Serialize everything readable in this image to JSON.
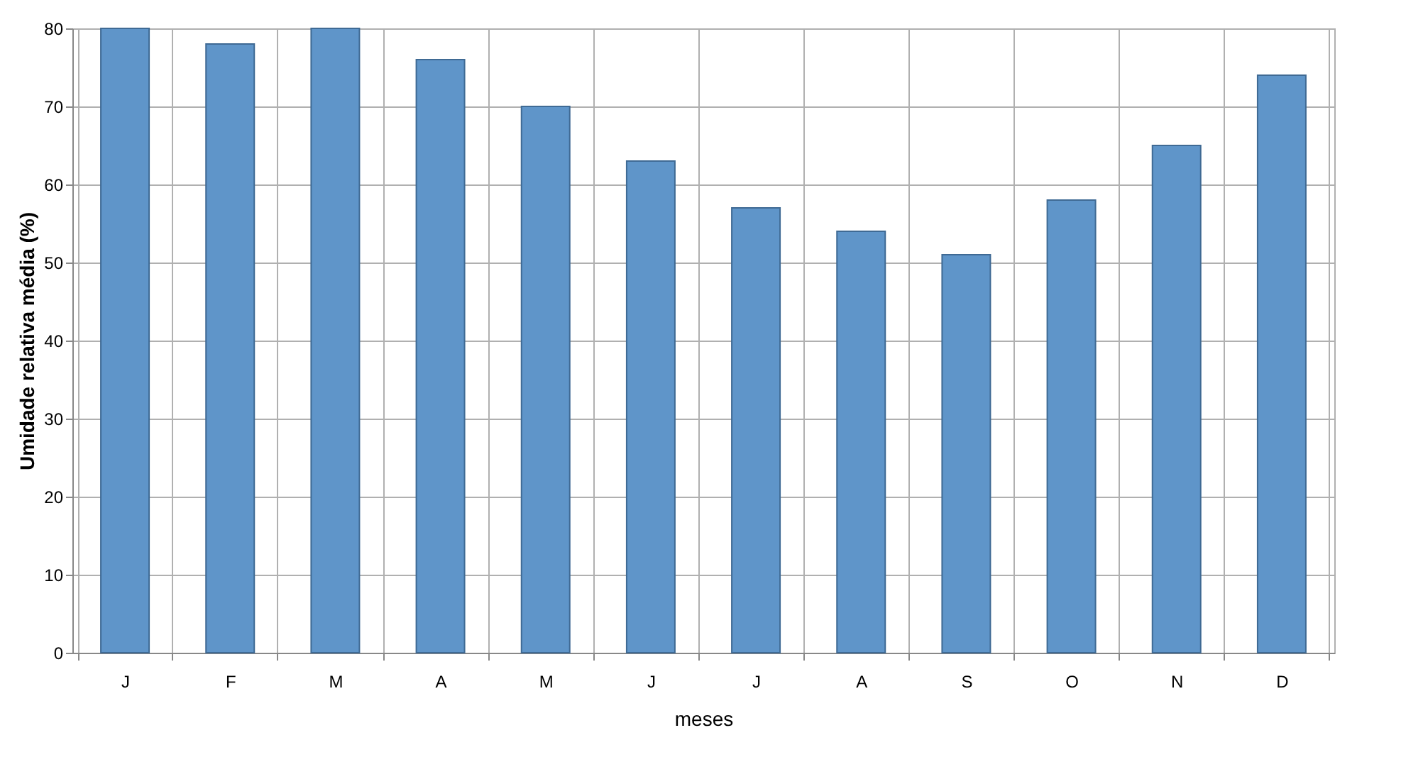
{
  "chart_data": {
    "type": "bar",
    "categories": [
      "J",
      "F",
      "M",
      "A",
      "M",
      "J",
      "J",
      "A",
      "S",
      "O",
      "N",
      "D"
    ],
    "values": [
      80,
      78,
      80,
      76,
      70,
      63,
      57,
      54,
      51,
      58,
      65,
      74
    ],
    "color": "#5f95c9",
    "xlabel": "meses",
    "ylabel": "Umidade relativa média (%)",
    "ylim": [
      0,
      80
    ],
    "yticks": [
      0,
      10,
      20,
      30,
      40,
      50,
      60,
      70,
      80
    ],
    "grid": true
  }
}
